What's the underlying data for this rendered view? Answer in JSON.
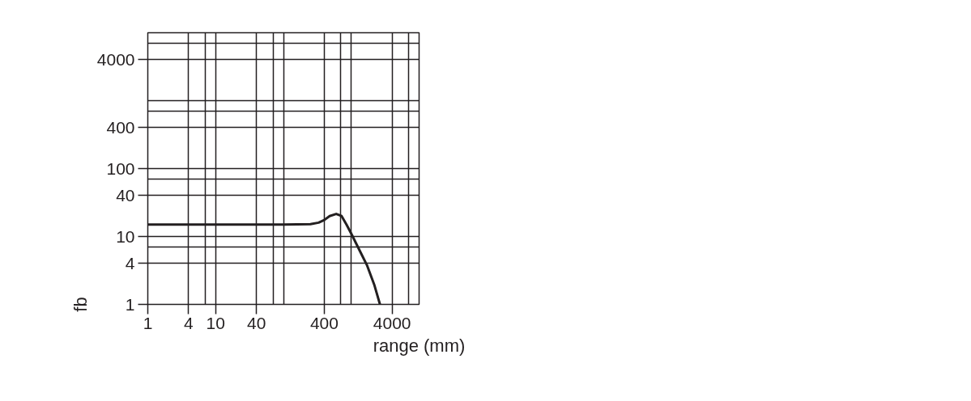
{
  "chart_data": {
    "type": "line",
    "xlabel": "range (mm)",
    "ylabel": "fb",
    "log": "xy",
    "grid": true,
    "marker": "none",
    "line_style": "solid",
    "xlim": [
      1,
      10000
    ],
    "ylim": [
      1,
      10000
    ],
    "xticks": [
      1,
      4,
      {
        "value": 7,
        "label": null
      },
      10,
      40,
      {
        "value": 70,
        "label": null
      },
      {
        "value": 100,
        "label": null
      },
      400,
      {
        "value": 700,
        "label": null
      },
      {
        "value": 1000,
        "label": null
      },
      4000,
      {
        "value": 7000,
        "label": null
      }
    ],
    "yticks": [
      1,
      4,
      {
        "value": 7,
        "label": null
      },
      10,
      40,
      {
        "value": 70,
        "label": null
      },
      100,
      400,
      {
        "value": 700,
        "label": null
      },
      {
        "value": 1000,
        "label": null
      },
      4000,
      {
        "value": 7000,
        "label": null
      }
    ],
    "series": [
      {
        "color": "#231f20",
        "x": [
          1,
          100,
          250,
          330,
          400,
          480,
          600,
          720,
          850,
          1000,
          1300,
          1700,
          2200,
          2650
        ],
        "values": [
          15,
          15,
          15.2,
          16,
          17.5,
          20,
          21.5,
          20,
          15,
          11,
          6.5,
          3.8,
          1.9,
          1
        ]
      }
    ]
  }
}
